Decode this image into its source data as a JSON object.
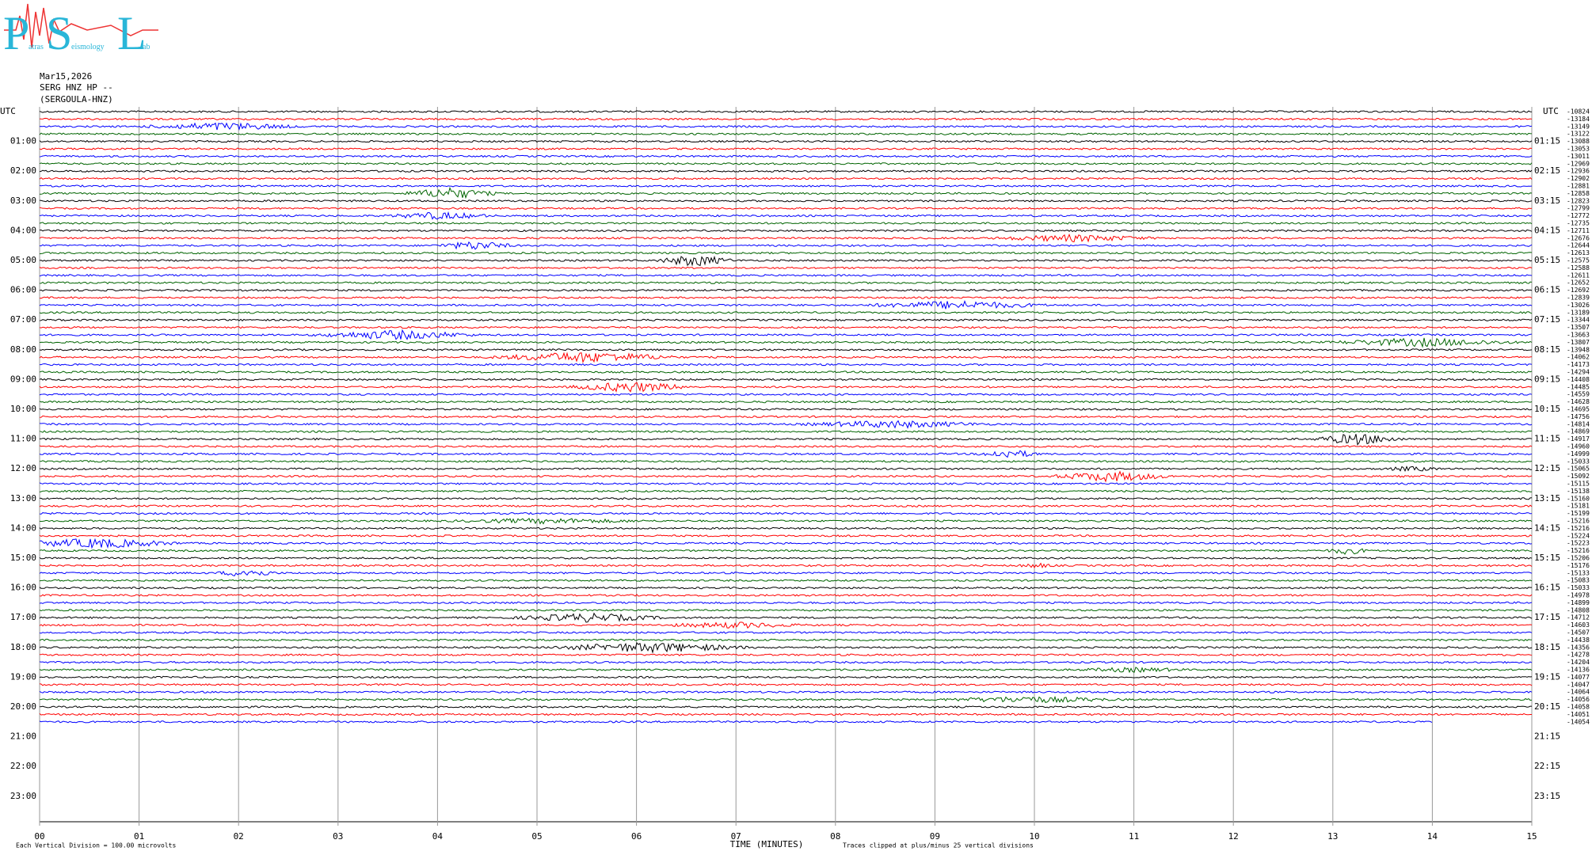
{
  "logo": {
    "big": [
      "P",
      "S",
      "L"
    ],
    "small": [
      "atras",
      "eismology",
      "ab"
    ]
  },
  "chart_data": {
    "type": "helicorder",
    "header": [
      "Mar15,2026",
      "SERG HNZ HP --",
      "(SERGOULA-HNZ)"
    ],
    "left_axis_title": "UTC",
    "right_axis_title": "UTC",
    "left_labels": [
      "01:00",
      "02:00",
      "03:00",
      "04:00",
      "05:00",
      "06:00",
      "07:00",
      "08:00",
      "09:00",
      "10:00",
      "11:00",
      "12:00",
      "13:00",
      "14:00",
      "15:00",
      "16:00",
      "17:00",
      "18:00",
      "19:00",
      "20:00",
      "21:00",
      "22:00",
      "23:00"
    ],
    "right_labels": [
      "01:15",
      "02:15",
      "03:15",
      "04:15",
      "05:15",
      "06:15",
      "07:15",
      "08:15",
      "09:15",
      "10:15",
      "11:15",
      "12:15",
      "13:15",
      "14:15",
      "15:15",
      "16:15",
      "17:15",
      "18:15",
      "19:15",
      "20:15",
      "21:15",
      "22:15",
      "23:15"
    ],
    "row_means": [
      -10824,
      -13184,
      -13149,
      -13122,
      -13088,
      -13053,
      -13011,
      -12969,
      -12936,
      -12902,
      -12881,
      -12858,
      -12823,
      -12799,
      -12772,
      -12735,
      -12711,
      -12676,
      -12644,
      -12613,
      -12575,
      -12588,
      -12611,
      -12652,
      -12692,
      -12839,
      -13026,
      -13189,
      -13344,
      -13507,
      -13663,
      -13807,
      -13948,
      -14062,
      -14173,
      -14294,
      -14408,
      -14485,
      -14559,
      -14628,
      -14695,
      -14756,
      -14814,
      -14869,
      -14917,
      -14960,
      -14999,
      -15033,
      -15065,
      -15092,
      -15115,
      -15138,
      -15160,
      -15181,
      -15199,
      -15216,
      -15216,
      -15224,
      -15223,
      -15216,
      -15206,
      -15176,
      -15133,
      -15083,
      -15033,
      -14978,
      -14899,
      -14808,
      -14712,
      -14603,
      -14507,
      -14438,
      -14356,
      -14278,
      -14204,
      -14136,
      -14077,
      -14047,
      -14064,
      -14056,
      -14058,
      -14051,
      -14054
    ],
    "trace_colors": [
      "#000000",
      "#ff0000",
      "#0000ff",
      "#006400"
    ],
    "xlim": [
      0,
      15
    ],
    "xticks": [
      {
        "value": 0,
        "label": "00"
      },
      {
        "value": 1,
        "label": "01"
      },
      {
        "value": 2,
        "label": "02"
      },
      {
        "value": 3,
        "label": "03"
      },
      {
        "value": 4,
        "label": "04"
      },
      {
        "value": 5,
        "label": "05"
      },
      {
        "value": 6,
        "label": "06"
      },
      {
        "value": 7,
        "label": "07"
      },
      {
        "value": 8,
        "label": "08"
      },
      {
        "value": 9,
        "label": "09"
      },
      10,
      11,
      12,
      13,
      14,
      15
    ],
    "xlabel": "TIME (MINUTES)",
    "left_note": "Each Vertical Division =  100.00 microvolts",
    "right_note": "Traces clipped at plus/minus 25 vertical divisions"
  }
}
